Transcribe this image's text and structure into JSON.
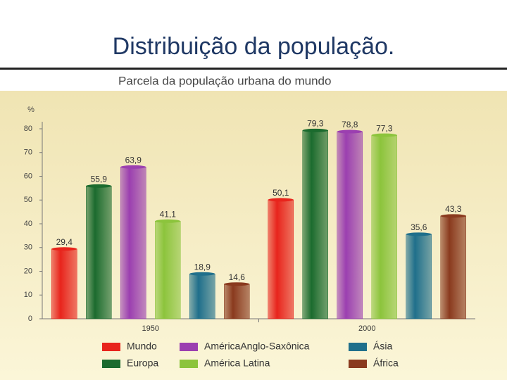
{
  "header": {
    "title": "Distribuição da população."
  },
  "chart_data": {
    "type": "bar",
    "title": "Parcela da população urbana do mundo",
    "ylabel": "%",
    "categories": [
      "1950",
      "2000"
    ],
    "series": [
      {
        "name": "Mundo",
        "color": "#e8241c",
        "values": [
          29.4,
          50.1
        ],
        "value_labels": [
          "29,4",
          "50,1"
        ]
      },
      {
        "name": "Europa",
        "color": "#1b6b2e",
        "values": [
          55.9,
          79.3
        ],
        "value_labels": [
          "55,9",
          "79,3"
        ]
      },
      {
        "name": "AméricaAnglo-Saxônica",
        "color": "#9b3fb0",
        "values": [
          63.9,
          78.8
        ],
        "value_labels": [
          "63,9",
          "78,8"
        ]
      },
      {
        "name": "América Latina",
        "color": "#8cc43c",
        "values": [
          41.1,
          77.3
        ],
        "value_labels": [
          "41,1",
          "77,3"
        ]
      },
      {
        "name": "Ásia",
        "color": "#1f6f8b",
        "values": [
          18.9,
          35.6
        ],
        "value_labels": [
          "18,9",
          "35,6"
        ]
      },
      {
        "name": "África",
        "color": "#8a3a1e",
        "values": [
          14.6,
          43.3
        ],
        "value_labels": [
          "14,6",
          "43,3"
        ]
      }
    ],
    "ylim": [
      0,
      80
    ],
    "yticks": [
      0,
      10,
      20,
      30,
      40,
      50,
      60,
      70,
      80
    ],
    "grid": false
  }
}
